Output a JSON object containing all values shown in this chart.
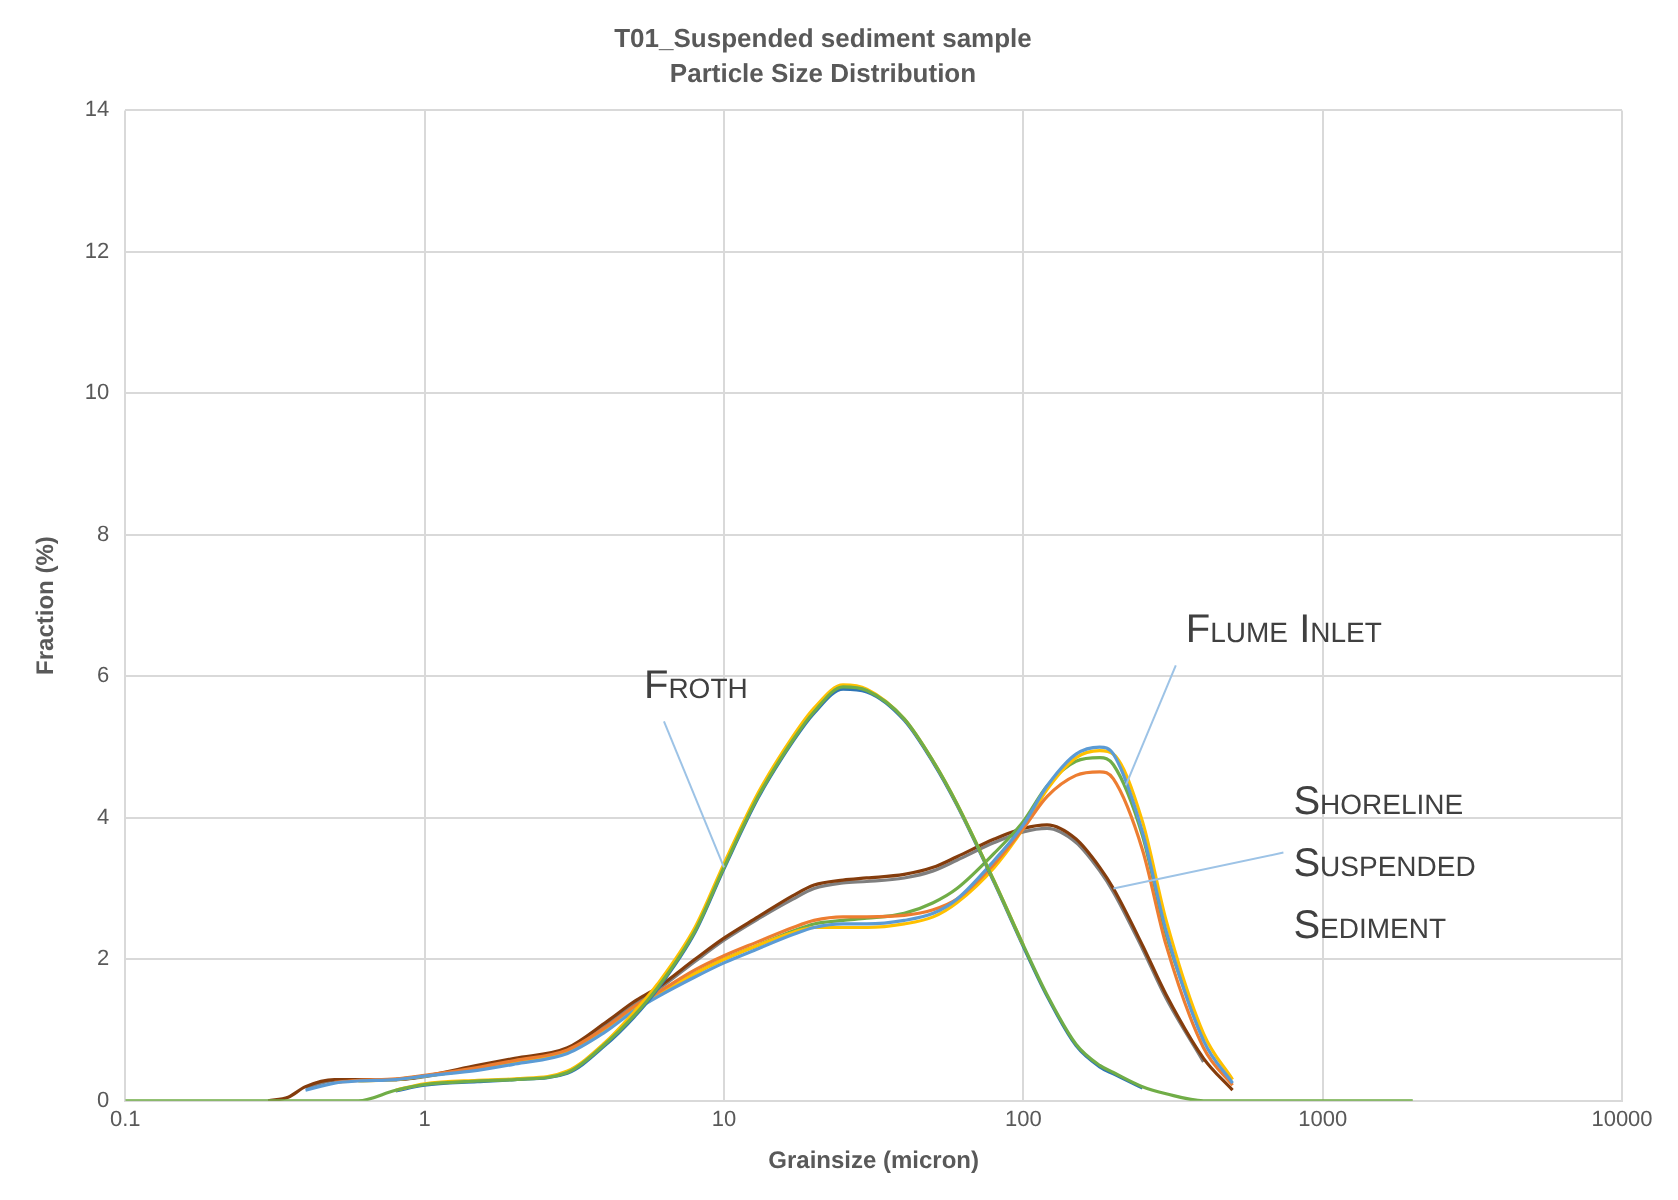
{
  "chart_data": {
    "type": "line",
    "title": "T01_Suspended sediment sample",
    "subtitle": "Particle Size Distribution",
    "xlabel": "Grainsize (micron)",
    "ylabel": "Fraction (%)",
    "x": [
      0.1,
      0.3,
      0.35,
      0.4,
      0.5,
      0.6,
      0.8,
      1,
      1.5,
      2,
      3,
      4,
      5,
      6,
      8,
      10,
      13,
      17,
      20,
      25,
      30,
      40,
      50,
      60,
      80,
      100,
      120,
      150,
      180,
      200,
      250,
      300,
      400,
      500,
      600,
      1000,
      2000
    ],
    "series": [
      {
        "color": "#70ad47",
        "values": [
          0,
          0,
          0,
          0,
          0,
          0,
          0.15,
          0.23,
          0.28,
          0.3,
          0.4,
          0.8,
          1.2,
          1.6,
          2.4,
          3.3,
          4.3,
          5.1,
          5.5,
          5.85,
          5.8,
          5.4,
          4.8,
          4.2,
          3.1,
          2.2,
          1.5,
          0.8,
          0.5,
          0.4,
          0.2,
          0.1,
          0,
          0,
          0,
          0,
          0
        ]
      },
      {
        "color": "#ffc000",
        "values": [
          null,
          null,
          null,
          null,
          null,
          null,
          0.15,
          0.24,
          0.29,
          0.31,
          0.42,
          0.82,
          1.25,
          1.65,
          2.45,
          3.35,
          4.35,
          5.15,
          5.55,
          5.88,
          5.82,
          5.4,
          4.8,
          4.2,
          3.1,
          2.2,
          null,
          null,
          null,
          null,
          null,
          null,
          null,
          null,
          null,
          null,
          null
        ]
      },
      {
        "color": "#2e75b6",
        "values": [
          null,
          null,
          null,
          null,
          null,
          null,
          0.14,
          0.22,
          0.27,
          0.3,
          0.39,
          0.78,
          1.18,
          1.58,
          2.38,
          3.28,
          4.28,
          5.08,
          5.48,
          5.82,
          5.78,
          5.38,
          4.78,
          4.18,
          3.08,
          2.18,
          1.48,
          0.78,
          0.48,
          0.38,
          0.18,
          null,
          null,
          null,
          null,
          null,
          null
        ]
      },
      {
        "color": "#5b9bd5",
        "values": [
          null,
          null,
          null,
          0.15,
          0.25,
          0.28,
          0.3,
          0.35,
          0.43,
          0.52,
          0.67,
          0.97,
          1.27,
          1.47,
          1.75,
          1.95,
          2.15,
          2.35,
          2.45,
          2.5,
          2.5,
          2.55,
          2.65,
          2.85,
          3.4,
          3.9,
          4.45,
          4.9,
          5.0,
          4.9,
          3.8,
          2.4,
          0.85,
          0.25,
          null,
          null,
          null
        ]
      },
      {
        "color": "#ed7d31",
        "values": [
          null,
          null,
          null,
          null,
          0.26,
          0.29,
          0.31,
          0.36,
          0.47,
          0.57,
          0.72,
          1.03,
          1.33,
          1.53,
          1.85,
          2.05,
          2.25,
          2.45,
          2.55,
          2.6,
          2.6,
          2.62,
          2.7,
          2.85,
          3.35,
          3.85,
          4.3,
          4.6,
          4.65,
          4.55,
          3.55,
          2.2,
          0.75,
          0.22,
          null,
          null,
          null
        ]
      },
      {
        "color": "#ffc000",
        "values": [
          null,
          null,
          null,
          null,
          null,
          0.28,
          0.3,
          0.35,
          0.45,
          0.55,
          0.7,
          1.0,
          1.3,
          1.5,
          1.8,
          2.0,
          2.2,
          2.38,
          2.45,
          2.45,
          2.45,
          2.5,
          2.6,
          2.8,
          3.3,
          3.85,
          4.4,
          4.85,
          4.95,
          4.9,
          3.95,
          2.55,
          0.95,
          0.3,
          null,
          null,
          null
        ]
      },
      {
        "color": "#70ad47",
        "values": [
          null,
          null,
          null,
          null,
          null,
          null,
          0.3,
          0.35,
          0.45,
          0.55,
          0.7,
          1.0,
          1.3,
          1.5,
          1.8,
          2.0,
          2.2,
          2.4,
          2.5,
          2.55,
          2.58,
          2.65,
          2.8,
          3.0,
          3.5,
          3.95,
          4.45,
          4.8,
          4.85,
          4.75,
          3.75,
          2.35,
          0.85,
          null,
          null,
          null,
          null
        ]
      },
      {
        "color": "#843c0c",
        "values": [
          null,
          0,
          0.05,
          0.2,
          0.3,
          0.3,
          0.3,
          0.35,
          0.5,
          0.6,
          0.75,
          1.1,
          1.4,
          1.6,
          2.0,
          2.3,
          2.6,
          2.9,
          3.05,
          3.12,
          3.15,
          3.2,
          3.3,
          3.45,
          3.7,
          3.85,
          3.9,
          3.7,
          3.3,
          3.0,
          2.2,
          1.5,
          0.6,
          0.15,
          null,
          null,
          null
        ]
      },
      {
        "color": "#7f7f7f",
        "values": [
          null,
          null,
          null,
          0.19,
          0.29,
          0.3,
          0.3,
          0.34,
          0.48,
          0.58,
          0.73,
          1.07,
          1.37,
          1.57,
          1.97,
          2.27,
          2.57,
          2.85,
          3.0,
          3.08,
          3.1,
          3.15,
          3.25,
          3.4,
          3.65,
          3.8,
          3.85,
          3.65,
          3.25,
          2.95,
          2.15,
          1.45,
          0.55,
          null,
          null,
          null,
          null
        ]
      }
    ],
    "xlim": [
      0.1,
      10000
    ],
    "xticks": [
      0.1,
      1,
      10,
      100,
      1000,
      10000
    ],
    "log": "x",
    "ylim": [
      0,
      14
    ],
    "yticks": [
      0,
      2,
      4,
      6,
      8,
      10,
      12,
      14
    ],
    "grid": true,
    "legend": false,
    "marker": "none",
    "line_style": "solid",
    "annotations": [
      {
        "text": "Froth",
        "x": 10,
        "y": 3.3
      },
      {
        "text": "Flume Inlet",
        "x": 220,
        "y": 4.46
      },
      {
        "text": "Shoreline Suspended Sediment",
        "x": 200,
        "y": 3.0
      }
    ]
  }
}
